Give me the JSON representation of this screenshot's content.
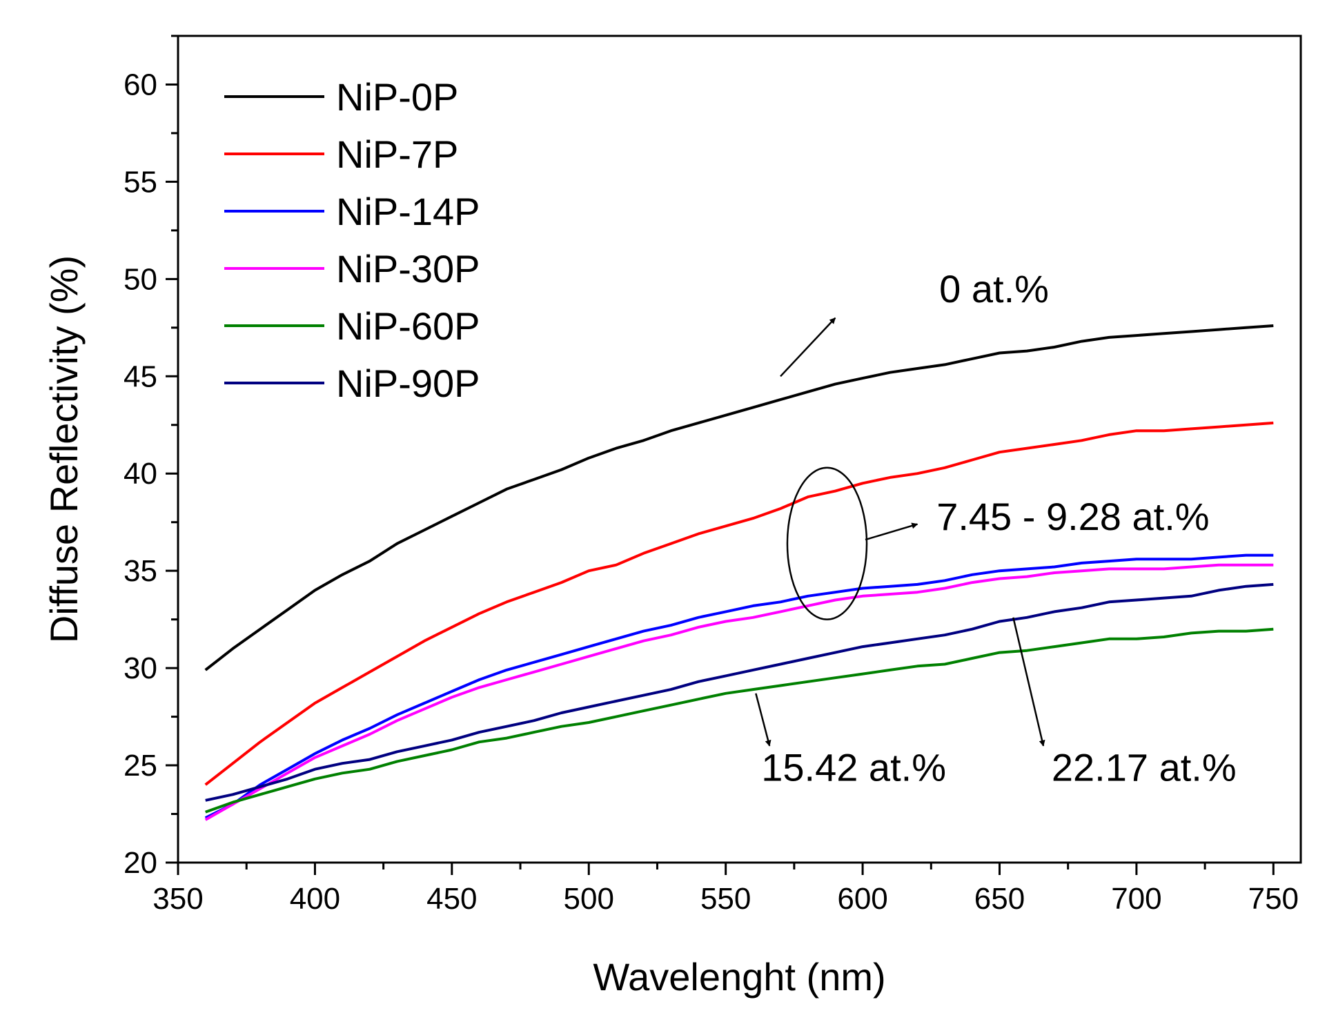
{
  "chart_data": {
    "type": "line",
    "xlabel": "Wavelenght (nm)",
    "ylabel": "Diffuse Reflectivity (%)",
    "xlim": [
      350,
      760
    ],
    "ylim": [
      20,
      62.5
    ],
    "xticks": [
      350,
      400,
      450,
      500,
      550,
      600,
      650,
      700,
      750
    ],
    "yticks": [
      20,
      25,
      30,
      35,
      40,
      45,
      50,
      55,
      60
    ],
    "grid": false,
    "legend": "top-left",
    "x": [
      360,
      370,
      380,
      390,
      400,
      410,
      420,
      430,
      440,
      450,
      460,
      470,
      480,
      490,
      500,
      510,
      520,
      530,
      540,
      550,
      560,
      570,
      580,
      590,
      600,
      610,
      620,
      630,
      640,
      650,
      660,
      670,
      680,
      690,
      700,
      710,
      720,
      730,
      740,
      750
    ],
    "series": [
      {
        "name": "NiP-0P",
        "color": "#000000",
        "values": [
          29.9,
          31.0,
          32.0,
          33.0,
          34.0,
          34.8,
          35.5,
          36.4,
          37.1,
          37.8,
          38.5,
          39.2,
          39.7,
          40.2,
          40.8,
          41.3,
          41.7,
          42.2,
          42.6,
          43.0,
          43.4,
          43.8,
          44.2,
          44.6,
          44.9,
          45.2,
          45.4,
          45.6,
          45.9,
          46.2,
          46.3,
          46.5,
          46.8,
          47.0,
          47.1,
          47.2,
          47.3,
          47.4,
          47.5,
          47.6
        ]
      },
      {
        "name": "NiP-7P",
        "color": "#ff0000",
        "values": [
          24.0,
          25.1,
          26.2,
          27.2,
          28.2,
          29.0,
          29.8,
          30.6,
          31.4,
          32.1,
          32.8,
          33.4,
          33.9,
          34.4,
          35.0,
          35.3,
          35.9,
          36.4,
          36.9,
          37.3,
          37.7,
          38.2,
          38.8,
          39.1,
          39.5,
          39.8,
          40.0,
          40.3,
          40.7,
          41.1,
          41.3,
          41.5,
          41.7,
          42.0,
          42.2,
          42.2,
          42.3,
          42.4,
          42.5,
          42.6
        ]
      },
      {
        "name": "NiP-14P",
        "color": "#0000ff",
        "values": [
          22.3,
          23.0,
          24.0,
          24.8,
          25.6,
          26.3,
          26.9,
          27.6,
          28.2,
          28.8,
          29.4,
          29.9,
          30.3,
          30.7,
          31.1,
          31.5,
          31.9,
          32.2,
          32.6,
          32.9,
          33.2,
          33.4,
          33.7,
          33.9,
          34.1,
          34.2,
          34.3,
          34.5,
          34.8,
          35.0,
          35.1,
          35.2,
          35.4,
          35.5,
          35.6,
          35.6,
          35.6,
          35.7,
          35.8,
          35.8
        ]
      },
      {
        "name": "NiP-30P",
        "color": "#ff00ff",
        "values": [
          22.2,
          23.0,
          23.8,
          24.6,
          25.4,
          26.0,
          26.6,
          27.3,
          27.9,
          28.5,
          29.0,
          29.4,
          29.8,
          30.2,
          30.6,
          31.0,
          31.4,
          31.7,
          32.1,
          32.4,
          32.6,
          32.9,
          33.2,
          33.5,
          33.7,
          33.8,
          33.9,
          34.1,
          34.4,
          34.6,
          34.7,
          34.9,
          35.0,
          35.1,
          35.1,
          35.1,
          35.2,
          35.3,
          35.3,
          35.3
        ]
      },
      {
        "name": "NiP-60P",
        "color": "#008000",
        "values": [
          22.6,
          23.1,
          23.5,
          23.9,
          24.3,
          24.6,
          24.8,
          25.2,
          25.5,
          25.8,
          26.2,
          26.4,
          26.7,
          27.0,
          27.2,
          27.5,
          27.8,
          28.1,
          28.4,
          28.7,
          28.9,
          29.1,
          29.3,
          29.5,
          29.7,
          29.9,
          30.1,
          30.2,
          30.5,
          30.8,
          30.9,
          31.1,
          31.3,
          31.5,
          31.5,
          31.6,
          31.8,
          31.9,
          31.9,
          32.0
        ]
      },
      {
        "name": "NiP-90P",
        "color": "#000080",
        "values": [
          23.2,
          23.5,
          23.9,
          24.3,
          24.8,
          25.1,
          25.3,
          25.7,
          26.0,
          26.3,
          26.7,
          27.0,
          27.3,
          27.7,
          28.0,
          28.3,
          28.6,
          28.9,
          29.3,
          29.6,
          29.9,
          30.2,
          30.5,
          30.8,
          31.1,
          31.3,
          31.5,
          31.7,
          32.0,
          32.4,
          32.6,
          32.9,
          33.1,
          33.4,
          33.5,
          33.6,
          33.7,
          34.0,
          34.2,
          34.3
        ]
      }
    ],
    "annotations": [
      {
        "text": "0 at.%",
        "x": 628,
        "y": 48.8,
        "arrow_from": [
          570,
          45.0
        ],
        "arrow_to": [
          590,
          48.0
        ]
      },
      {
        "text": "7.45 - 9.28 at.%",
        "x": 627,
        "y": 37.1,
        "arrow_from": [
          601,
          36.6
        ],
        "arrow_to": [
          620,
          37.4
        ]
      },
      {
        "text": "15.42 at.%",
        "x": 563,
        "y": 24.2,
        "arrow_from": [
          561,
          28.7
        ],
        "arrow_to": [
          566,
          26.0
        ]
      },
      {
        "text": "22.17 at.%",
        "x": 669,
        "y": 24.2,
        "arrow_from": [
          655,
          32.6
        ],
        "arrow_to": [
          666,
          26.0
        ]
      }
    ],
    "ellipse": {
      "cx": 587,
      "cy": 36.4,
      "rx_nm": 14.5,
      "ry": 3.9
    }
  }
}
